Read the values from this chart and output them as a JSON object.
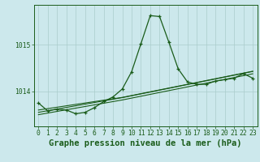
{
  "title": "Graphe pression niveau de la mer (hPa)",
  "bg_color": "#cce8ec",
  "grid_color": "#aacccc",
  "line_color": "#1a5c1a",
  "x_labels": [
    "0",
    "1",
    "2",
    "3",
    "4",
    "5",
    "6",
    "7",
    "8",
    "9",
    "10",
    "11",
    "12",
    "13",
    "14",
    "15",
    "16",
    "17",
    "18",
    "19",
    "20",
    "21",
    "22",
    "23"
  ],
  "main_series": [
    1013.75,
    1013.58,
    1013.62,
    1013.6,
    1013.52,
    1013.55,
    1013.65,
    1013.78,
    1013.88,
    1014.05,
    1014.42,
    1015.02,
    1015.62,
    1015.6,
    1015.05,
    1014.48,
    1014.2,
    1014.15,
    1014.15,
    1014.22,
    1014.25,
    1014.28,
    1014.38,
    1014.28
  ],
  "trend1": [
    1013.6,
    1013.63,
    1013.66,
    1013.69,
    1013.72,
    1013.75,
    1013.78,
    1013.81,
    1013.84,
    1013.87,
    1013.91,
    1013.95,
    1013.99,
    1014.03,
    1014.07,
    1014.11,
    1014.15,
    1014.19,
    1014.23,
    1014.27,
    1014.31,
    1014.35,
    1014.39,
    1014.43
  ],
  "trend2": [
    1013.55,
    1013.585,
    1013.62,
    1013.655,
    1013.69,
    1013.725,
    1013.76,
    1013.795,
    1013.83,
    1013.865,
    1013.905,
    1013.945,
    1013.985,
    1014.025,
    1014.065,
    1014.105,
    1014.145,
    1014.185,
    1014.225,
    1014.265,
    1014.305,
    1014.345,
    1014.385,
    1014.425
  ],
  "trend3": [
    1013.5,
    1013.535,
    1013.57,
    1013.605,
    1013.64,
    1013.675,
    1013.71,
    1013.745,
    1013.78,
    1013.815,
    1013.855,
    1013.895,
    1013.935,
    1013.975,
    1014.015,
    1014.055,
    1014.095,
    1014.135,
    1014.175,
    1014.215,
    1014.255,
    1014.295,
    1014.335,
    1014.375
  ],
  "yticks": [
    1014,
    1015
  ],
  "ylim": [
    1013.25,
    1015.85
  ],
  "xlim": [
    -0.5,
    23.5
  ],
  "title_fontsize": 7.5,
  "tick_fontsize": 5.8,
  "fig_width": 3.2,
  "fig_height": 2.0,
  "dpi": 100
}
